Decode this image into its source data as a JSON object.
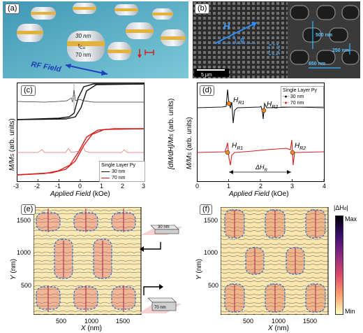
{
  "panels": {
    "a": {
      "label": "(a)",
      "thickness_top": "30 nm",
      "t_cu": "t",
      "t_cu_sub": "Cu",
      "thickness_bottom": "70 nm",
      "rf_field": "RF Field"
    },
    "b": {
      "label": "(b)",
      "h_label": "H",
      "phi_label": "ϕ",
      "scalebar": "5 μm",
      "dim1": "500 nm",
      "dim2": "250 nm",
      "dim3": "650 nm"
    },
    "c": {
      "label": "(c)",
      "ylabel": "M/M",
      "ylabel_sub": "S",
      "ylabel_unit": " (arb. units)",
      "y2label": "[dM/dH]/M",
      "y2label_sub": "S",
      "y2label_unit": " (arb. units)",
      "xlabel": "Applied Field",
      "xunit": " (kOe)",
      "legend_title": "Single Layer Py",
      "legend": [
        "30 nm",
        "70 nm"
      ],
      "xticks": [
        "-3",
        "-2",
        "-1",
        "0",
        "1",
        "2",
        "3"
      ]
    },
    "d": {
      "label": "(d)",
      "ylabel": "M/M",
      "ylabel_sub": "S",
      "ylabel_unit": " (arb. units)",
      "xlabel": "Applied Field",
      "xunit": " (kOe)",
      "legend_title": "Single Layer Py",
      "legend": [
        "30 nm",
        "70 nm"
      ],
      "xticks": [
        "0",
        "1",
        "2",
        "3",
        "4"
      ],
      "hr1": "H",
      "hr1_sub": "R1",
      "hr2": "H",
      "hr2_sub": "R2",
      "dhr": "ΔH",
      "dhr_sub": "R"
    },
    "e": {
      "label": "(e)",
      "ylabel": "Y",
      "yunit": " (nm)",
      "xlabel": "X",
      "xunit": " (nm)",
      "ticks": [
        "500",
        "1000",
        "1500"
      ],
      "inset_top": "30 nm",
      "inset_bottom": "70 nm"
    },
    "f": {
      "label": "(f)",
      "ylabel": "Y",
      "yunit": " (nm)",
      "xlabel": "X",
      "xunit": " (nm)",
      "ticks": [
        "500",
        "1000",
        "1500"
      ]
    },
    "colorbar": {
      "title": "|ΔH",
      "title_sub": "d",
      "title_end": "|",
      "max": "Max",
      "min": "Min"
    }
  },
  "colors": {
    "black_curve": "#111111",
    "red_curve": "#d62020",
    "orange_marker": "#f08a24",
    "blue_accent": "#1f6fd6",
    "teal_bg": "#5bb3c9"
  }
}
